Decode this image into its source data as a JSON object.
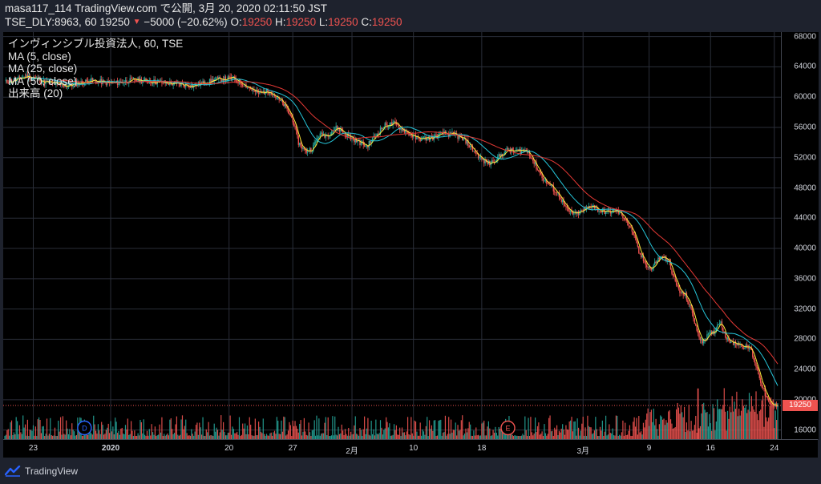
{
  "header": {
    "line1": "masa117_114 TradingView.com で公開, 3月 20, 2020 02:11:50 JST",
    "symbol": "TSE_DLY:8963, 60",
    "last": "19250",
    "change": "−5000 (−20.62%)",
    "o_label": "O:",
    "o_val": "19250",
    "h_label": "H:",
    "h_val": "19250",
    "l_label": "L:",
    "l_val": "19250",
    "c_label": "C:",
    "c_val": "19250"
  },
  "legend": {
    "series_title": "インヴィンシブル投資法人, 60, TSE",
    "ma5": "MA (5, close)",
    "ma25": "MA (25, close)",
    "ma50": "MA (50, close)",
    "volume": "出来高 (20)"
  },
  "footer": {
    "brand": "TradingView"
  },
  "markers": [
    {
      "label": "D",
      "index": 70,
      "color": "#2962ff"
    },
    {
      "label": "E",
      "index": 442,
      "color": "#ef5350"
    }
  ],
  "chart_data": {
    "type": "candlestick",
    "y_ticks": [
      68000,
      64000,
      60000,
      56000,
      52000,
      48000,
      44000,
      40000,
      36000,
      32000,
      28000,
      24000,
      20000,
      16000
    ],
    "ylim": [
      14800,
      68600
    ],
    "x_ticks": [
      {
        "label": "23",
        "index": 25
      },
      {
        "label": "2020",
        "index": 93,
        "bold": true
      },
      {
        "label": "20",
        "index": 197
      },
      {
        "label": "27",
        "index": 253
      },
      {
        "label": "2月",
        "index": 305
      },
      {
        "label": "10",
        "index": 359
      },
      {
        "label": "18",
        "index": 419
      },
      {
        "label": "3月",
        "index": 508
      },
      {
        "label": "9",
        "index": 566
      },
      {
        "label": "16",
        "index": 620
      },
      {
        "label": "24",
        "index": 676
      }
    ],
    "bar_count": 680,
    "last_price": "19250",
    "last_price_value": 19250,
    "price_anchors": [
      [
        0,
        62000
      ],
      [
        8,
        62200
      ],
      [
        20,
        62800
      ],
      [
        35,
        62000
      ],
      [
        55,
        61500
      ],
      [
        75,
        62200
      ],
      [
        95,
        61800
      ],
      [
        115,
        62300
      ],
      [
        140,
        61900
      ],
      [
        165,
        61500
      ],
      [
        185,
        62300
      ],
      [
        200,
        62500
      ],
      [
        212,
        61500
      ],
      [
        222,
        60500
      ],
      [
        233,
        60800
      ],
      [
        245,
        59000
      ],
      [
        253,
        57000
      ],
      [
        258,
        54000
      ],
      [
        264,
        52800
      ],
      [
        270,
        53200
      ],
      [
        276,
        55000
      ],
      [
        283,
        55000
      ],
      [
        292,
        56000
      ],
      [
        300,
        55000
      ],
      [
        308,
        54300
      ],
      [
        318,
        53500
      ],
      [
        326,
        55000
      ],
      [
        333,
        56200
      ],
      [
        342,
        56500
      ],
      [
        352,
        55500
      ],
      [
        362,
        54500
      ],
      [
        375,
        54600
      ],
      [
        385,
        55200
      ],
      [
        395,
        55000
      ],
      [
        405,
        54200
      ],
      [
        414,
        52500
      ],
      [
        421,
        51500
      ],
      [
        426,
        51200
      ],
      [
        433,
        52000
      ],
      [
        441,
        53000
      ],
      [
        448,
        52800
      ],
      [
        454,
        53000
      ],
      [
        460,
        52800
      ],
      [
        466,
        51000
      ],
      [
        474,
        49000
      ],
      [
        481,
        48000
      ],
      [
        487,
        47000
      ],
      [
        494,
        45000
      ],
      [
        501,
        44500
      ],
      [
        508,
        45000
      ],
      [
        516,
        45800
      ],
      [
        522,
        45000
      ],
      [
        530,
        44800
      ],
      [
        537,
        45000
      ],
      [
        545,
        44000
      ],
      [
        552,
        42000
      ],
      [
        557,
        39500
      ],
      [
        562,
        38200
      ],
      [
        568,
        37200
      ],
      [
        573,
        38500
      ],
      [
        578,
        39000
      ],
      [
        584,
        38000
      ],
      [
        589,
        35500
      ],
      [
        594,
        34000
      ],
      [
        598,
        33800
      ],
      [
        604,
        31500
      ],
      [
        609,
        28500
      ],
      [
        613,
        27800
      ],
      [
        618,
        28500
      ],
      [
        623,
        29000
      ],
      [
        628,
        30500
      ],
      [
        633,
        28500
      ],
      [
        638,
        27500
      ],
      [
        644,
        27500
      ],
      [
        650,
        27000
      ],
      [
        655,
        26800
      ],
      [
        660,
        24500
      ],
      [
        666,
        21500
      ],
      [
        672,
        19250
      ],
      [
        679,
        19250
      ]
    ],
    "volume_spikes": [
      {
        "index": 609,
        "value": 21500,
        "color": "#ef5350"
      }
    ],
    "series": [
      {
        "name": "MA (5, close)",
        "period": 5,
        "color": "#ffeb3b"
      },
      {
        "name": "MA (25, close)",
        "period": 25,
        "color": "#26c6da"
      },
      {
        "name": "MA (50, close)",
        "period": 50,
        "color": "#e53935"
      },
      {
        "name": "出来高 (20)",
        "color_up": "#26a69a",
        "color_down": "#ef5350"
      }
    ],
    "colors": {
      "up": "#26a69a",
      "down": "#ef5350",
      "grid": "#2a2e39",
      "bg": "#000000"
    }
  }
}
